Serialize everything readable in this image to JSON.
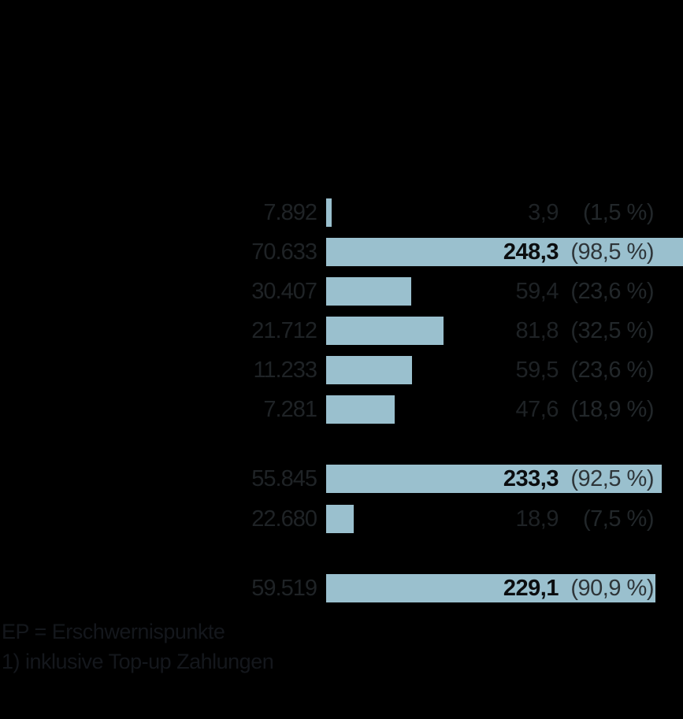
{
  "colors": {
    "background": "#000000",
    "bar": "#9ac0ce",
    "label_text": "#1f2326",
    "value_text": "#1e2225",
    "pct_text": "#22272a",
    "on_bar_value": "#0b0d0f",
    "on_bar_pct": "#2e3539",
    "footer_text": "#14171c"
  },
  "chart_data": {
    "type": "bar",
    "orientation": "horizontal",
    "title": "",
    "xlabel": "",
    "ylabel": "",
    "xlim": [
      0,
      248.3
    ],
    "grid": false,
    "axes_visible": false,
    "rows": [
      {
        "label": "7.892",
        "value": 3.9,
        "value_label": "3,9",
        "pct_label": "(1,5 %)",
        "group": 0,
        "value_on_bar": false
      },
      {
        "label": "70.633",
        "value": 248.3,
        "value_label": "248,3",
        "pct_label": "(98,5 %)",
        "group": 0,
        "value_on_bar": true
      },
      {
        "label": "30.407",
        "value": 59.4,
        "value_label": "59,4",
        "pct_label": "(23,6 %)",
        "group": 0,
        "value_on_bar": false
      },
      {
        "label": "21.712",
        "value": 81.8,
        "value_label": "81,8",
        "pct_label": "(32,5 %)",
        "group": 0,
        "value_on_bar": false
      },
      {
        "label": "11.233",
        "value": 59.5,
        "value_label": "59,5",
        "pct_label": "(23,6 %)",
        "group": 0,
        "value_on_bar": false
      },
      {
        "label": "7.281",
        "value": 47.6,
        "value_label": "47,6",
        "pct_label": "(18,9 %)",
        "group": 0,
        "value_on_bar": false
      },
      {
        "label": "55.845",
        "value": 233.3,
        "value_label": "233,3",
        "pct_label": "(92,5 %)",
        "group": 1,
        "value_on_bar": true
      },
      {
        "label": "22.680",
        "value": 18.9,
        "value_label": "18,9",
        "pct_label": "(7,5 %)",
        "group": 1,
        "value_on_bar": false
      },
      {
        "label": "59.519",
        "value": 229.1,
        "value_label": "229,1",
        "pct_label": "(90,9 %)",
        "group": 2,
        "value_on_bar": true
      }
    ]
  },
  "footnotes": {
    "line1": "EP = Erschwernispunkte",
    "line2": "1) inklusive Top-up Zahlungen"
  }
}
